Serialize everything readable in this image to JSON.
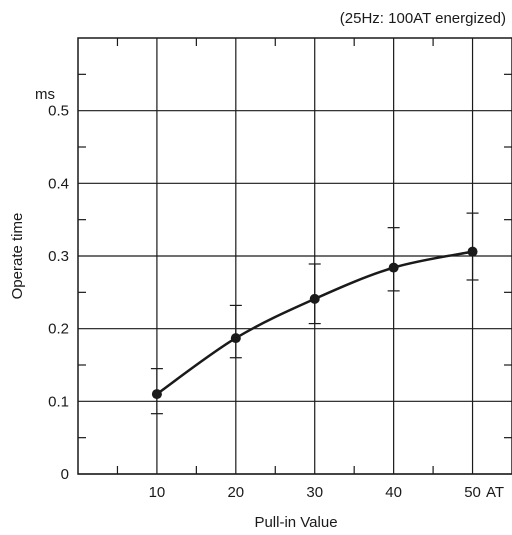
{
  "chart_data": {
    "type": "line",
    "subtitle": "(25Hz: 100AT energized)",
    "xlabel": "Pull-in Value",
    "x_unit": "AT",
    "ylabel": "Operate time",
    "y_unit": "ms",
    "xlim": [
      0,
      55
    ],
    "ylim": [
      0,
      0.6
    ],
    "x_ticks": [
      10,
      20,
      30,
      40,
      50
    ],
    "x_tick_labels": [
      "10",
      "20",
      "30",
      "40",
      "50"
    ],
    "y_ticks": [
      0,
      0.1,
      0.2,
      0.3,
      0.4,
      0.5
    ],
    "y_tick_labels": [
      "0",
      "0.1",
      "0.2",
      "0.3",
      "0.4",
      "0.5"
    ],
    "grid": true,
    "series": [
      {
        "x": [
          10,
          20,
          30,
          40,
          50
        ],
        "y": [
          0.11,
          0.187,
          0.241,
          0.284,
          0.306
        ],
        "y_max": [
          0.145,
          0.232,
          0.289,
          0.339,
          0.359
        ],
        "y_min": [
          0.083,
          0.16,
          0.207,
          0.252,
          0.267
        ],
        "color": "#1a1a1a"
      }
    ]
  }
}
